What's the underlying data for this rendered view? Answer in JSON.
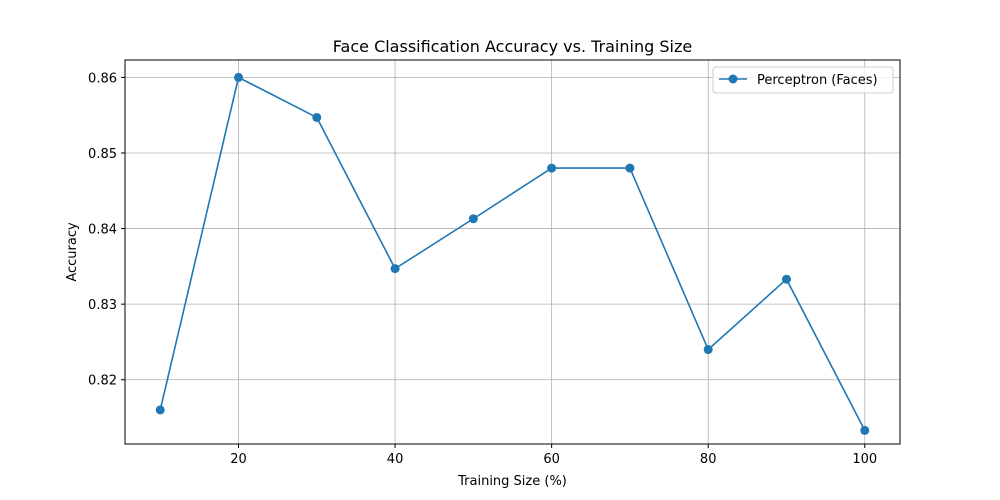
{
  "chart_data": {
    "type": "line",
    "title": "Face Classification Accuracy vs. Training Size",
    "xlabel": "Training Size (%)",
    "ylabel": "Accuracy",
    "xlim": [
      5.5,
      104.5
    ],
    "ylim": [
      0.8115,
      0.8623
    ],
    "xticks": [
      20,
      40,
      60,
      80,
      100
    ],
    "yticks": [
      0.82,
      0.83,
      0.84,
      0.85,
      0.86
    ],
    "grid": true,
    "legend": "top-right",
    "series": [
      {
        "name": "Perceptron (Faces)",
        "color": "#1f77b4",
        "marker": "circle",
        "x": [
          10,
          20,
          30,
          40,
          50,
          60,
          70,
          80,
          90,
          100
        ],
        "y": [
          0.816,
          0.86,
          0.8547,
          0.8347,
          0.8413,
          0.848,
          0.848,
          0.824,
          0.8333,
          0.8133
        ]
      }
    ]
  }
}
